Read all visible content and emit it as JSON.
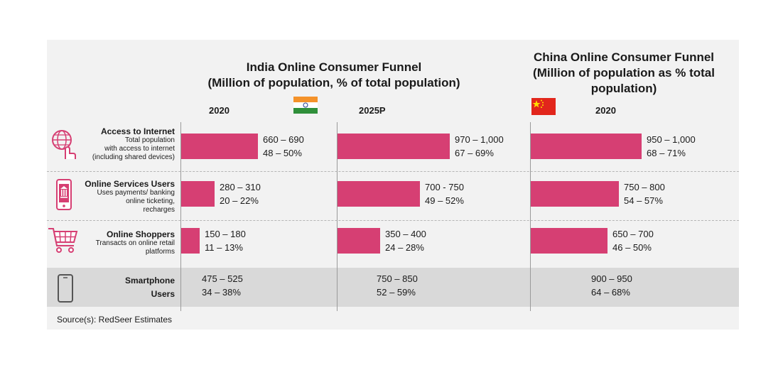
{
  "india_title_line1": "India Online Consumer Funnel",
  "india_title_line2": "(Million of population, % of total population)",
  "china_title_line1": "China Online Consumer Funnel",
  "china_title_line2": "(Million of population as % total",
  "china_title_line3": "population)",
  "columns": [
    "2020",
    "2025P",
    "2020"
  ],
  "source": "Source(s): RedSeer Estimates",
  "colors": {
    "bar": "#d63f73",
    "panel": "#f2f2f2",
    "smartphone_band": "#d9d9d9"
  },
  "icons": [
    "globe-hand-icon",
    "mobile-bank-icon",
    "shopping-cart-icon",
    "smartphone-icon"
  ],
  "rows": [
    {
      "title": "Access to Internet",
      "desc": [
        "Total population",
        "with access to internet",
        "(including shared devices)"
      ]
    },
    {
      "title": "Online Services Users",
      "desc": [
        "Uses payments/ banking",
        "online ticketing,",
        "recharges"
      ]
    },
    {
      "title": "Online Shoppers",
      "desc": [
        "Transacts on online retail",
        "platforms"
      ]
    },
    {
      "title_lines": [
        "Smartphone",
        "Users"
      ]
    }
  ],
  "chart_data": {
    "type": "bar",
    "orientation": "horizontal",
    "groups": [
      "India 2020",
      "India 2025P",
      "China 2020"
    ],
    "categories": [
      "Access to Internet",
      "Online Services Users",
      "Online Shoppers"
    ],
    "series": [
      {
        "name": "India 2020",
        "values": [
          675,
          295,
          165
        ],
        "labels": [
          "660 – 690",
          "280 – 310",
          "150 – 180"
        ],
        "pct": [
          "48 – 50%",
          "20 – 22%",
          "11 – 13%"
        ]
      },
      {
        "name": "India 2025P",
        "values": [
          985,
          725,
          375
        ],
        "labels": [
          "970 – 1,000",
          "700 - 750",
          "350 – 400"
        ],
        "pct": [
          "67 – 69%",
          "49 – 52%",
          "24 – 28%"
        ]
      },
      {
        "name": "China 2020",
        "values": [
          975,
          775,
          675
        ],
        "labels": [
          "950 – 1,000",
          "750 – 800",
          "650 – 700"
        ],
        "pct": [
          "68 – 71%",
          "54 – 57%",
          "46 – 50%"
        ]
      }
    ],
    "smartphone_users": {
      "labels": [
        "475 – 525",
        "750 – 850",
        "900 – 950"
      ],
      "pct": [
        "34 – 38%",
        "52 – 59%",
        "64 – 68%"
      ]
    },
    "xlim": [
      0,
      1000
    ]
  }
}
